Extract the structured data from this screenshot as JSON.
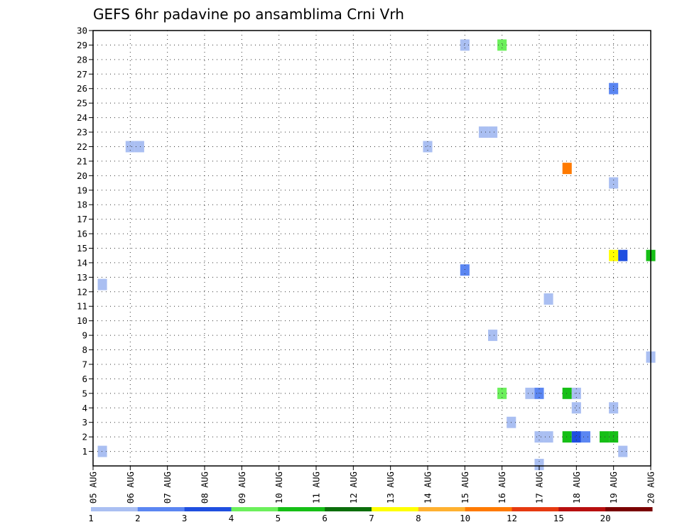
{
  "chart_data": {
    "type": "heatmap",
    "title": "GEFS 6hr padavine po ansamblima Crni Vrh",
    "x_tick_labels": [
      "05 AUG",
      "06 AUG",
      "07 AUG",
      "08 AUG",
      "09 AUG",
      "10 AUG",
      "11 AUG",
      "12 AUG",
      "13 AUG",
      "14 AUG",
      "15 AUG",
      "16 AUG",
      "17 AUG",
      "18 AUG",
      "19 AUG",
      "20 AUG"
    ],
    "y_tick_labels": [
      "1",
      "2",
      "3",
      "4",
      "5",
      "6",
      "7",
      "8",
      "9",
      "10",
      "11",
      "12",
      "13",
      "14",
      "15",
      "16",
      "17",
      "18",
      "19",
      "20",
      "21",
      "22",
      "23",
      "24",
      "25",
      "26",
      "27",
      "28",
      "29",
      "30"
    ],
    "xlim_days": [
      5,
      20
    ],
    "ylim": [
      0,
      30
    ],
    "grid": true,
    "colorbar": {
      "position": "bottom",
      "labels": [
        "1",
        "2",
        "3",
        "4",
        "5",
        "6",
        "7",
        "8",
        "10",
        "12",
        "15",
        "20"
      ],
      "colors": [
        "#aabff2",
        "#5b86f2",
        "#1f4fe0",
        "#6cf05c",
        "#16bf16",
        "#0b6e0b",
        "#ffff00",
        "#ffb130",
        "#ff7a00",
        "#e63a10",
        "#b80f0f",
        "#7a0000"
      ]
    },
    "cells": [
      {
        "day": 5.25,
        "member": 1,
        "color": "#aabff2"
      },
      {
        "day": 5.25,
        "member": 12.5,
        "color": "#aabff2"
      },
      {
        "day": 6.0,
        "member": 22,
        "color": "#aabff2"
      },
      {
        "day": 6.25,
        "member": 22,
        "color": "#aabff2"
      },
      {
        "day": 14.0,
        "member": 22,
        "color": "#aabff2"
      },
      {
        "day": 15.0,
        "member": 29,
        "color": "#aabff2"
      },
      {
        "day": 15.0,
        "member": 13.5,
        "color": "#5b86f2"
      },
      {
        "day": 15.5,
        "member": 23,
        "color": "#aabff2"
      },
      {
        "day": 15.75,
        "member": 23,
        "color": "#aabff2"
      },
      {
        "day": 15.75,
        "member": 9,
        "color": "#aabff2"
      },
      {
        "day": 16.0,
        "member": 29,
        "color": "#6cf05c"
      },
      {
        "day": 16.0,
        "member": 5,
        "color": "#6cf05c"
      },
      {
        "day": 16.25,
        "member": 3,
        "color": "#aabff2"
      },
      {
        "day": 16.75,
        "member": 5,
        "color": "#aabff2"
      },
      {
        "day": 17.0,
        "member": 5,
        "color": "#5b86f2"
      },
      {
        "day": 17.0,
        "member": 2,
        "color": "#aabff2"
      },
      {
        "day": 17.25,
        "member": 2,
        "color": "#aabff2"
      },
      {
        "day": 17.0,
        "member": 0.1,
        "color": "#aabff2"
      },
      {
        "day": 17.25,
        "member": 11.5,
        "color": "#aabff2"
      },
      {
        "day": 17.75,
        "member": 20.5,
        "color": "#ff7a00"
      },
      {
        "day": 17.75,
        "member": 5,
        "color": "#16bf16"
      },
      {
        "day": 17.75,
        "member": 2,
        "color": "#16bf16"
      },
      {
        "day": 18.0,
        "member": 2,
        "color": "#1f4fe0"
      },
      {
        "day": 18.25,
        "member": 2,
        "color": "#5b86f2"
      },
      {
        "day": 18.0,
        "member": 5,
        "color": "#aabff2"
      },
      {
        "day": 18.0,
        "member": 4,
        "color": "#aabff2"
      },
      {
        "day": 18.75,
        "member": 2,
        "color": "#16bf16"
      },
      {
        "day": 19.0,
        "member": 2,
        "color": "#16bf16"
      },
      {
        "day": 19.0,
        "member": 26,
        "color": "#5b86f2"
      },
      {
        "day": 19.0,
        "member": 19.5,
        "color": "#aabff2"
      },
      {
        "day": 19.0,
        "member": 14.5,
        "color": "#ffff00"
      },
      {
        "day": 19.25,
        "member": 14.5,
        "color": "#1f4fe0"
      },
      {
        "day": 19.0,
        "member": 4,
        "color": "#aabff2"
      },
      {
        "day": 19.25,
        "member": 1,
        "color": "#aabff2"
      },
      {
        "day": 20.0,
        "member": 14.5,
        "color": "#16bf16"
      },
      {
        "day": 20.0,
        "member": 7.5,
        "color": "#aabff2"
      }
    ]
  }
}
